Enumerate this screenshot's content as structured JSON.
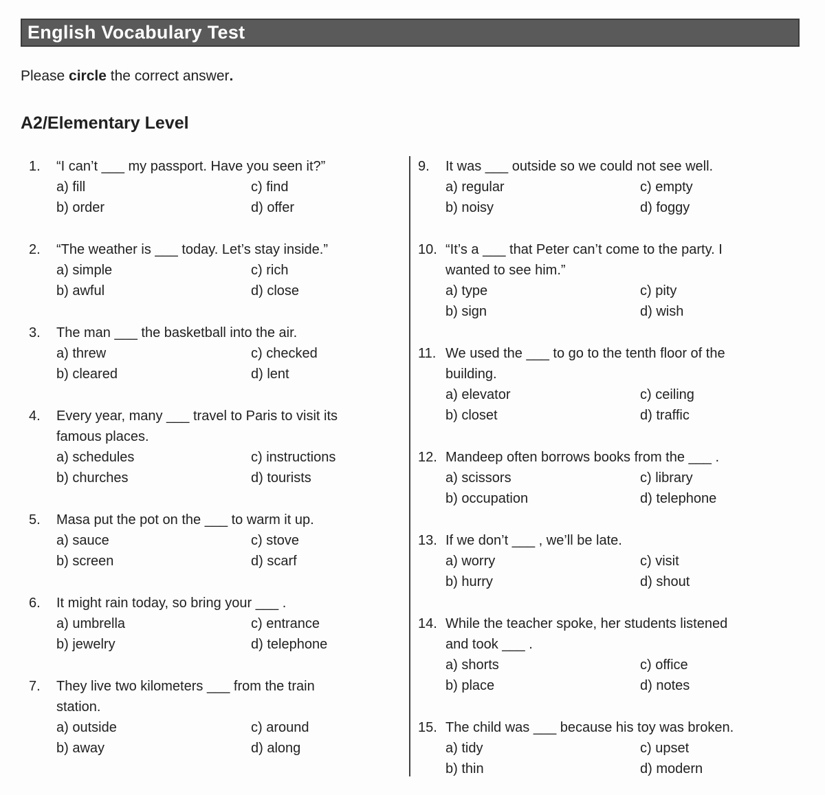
{
  "header": {
    "title": "English Vocabulary Test",
    "bar_color": "#5a5a5a",
    "bar_border_color": "#3b3b3b",
    "title_color": "#ffffff"
  },
  "instruction": {
    "segments": [
      {
        "text": "Please ",
        "bold": false
      },
      {
        "text": "circle",
        "bold": true
      },
      {
        "text": " the correct answer",
        "bold": false
      },
      {
        "text": ".",
        "bold": true
      }
    ]
  },
  "section": {
    "title": "A2/Elementary Level"
  },
  "questions_left": [
    {
      "num": "1.",
      "lines": [
        "“I can’t ___ my passport. Have you seen it?”"
      ],
      "options": [
        "a) fill",
        "c) find",
        "b) order",
        "d) offer"
      ]
    },
    {
      "num": "2.",
      "lines": [
        "“The weather is ___ today. Let’s stay inside.”"
      ],
      "options": [
        "a) simple",
        "c) rich",
        "b) awful",
        "d) close"
      ]
    },
    {
      "num": "3.",
      "lines": [
        "The man ___ the basketball into the air."
      ],
      "options": [
        "a) threw",
        "c) checked",
        "b) cleared",
        "d) lent"
      ]
    },
    {
      "num": "4.",
      "lines": [
        "Every year, many ___ travel to Paris to visit its",
        "famous places."
      ],
      "options": [
        "a) schedules",
        "c) instructions",
        "b) churches",
        "d) tourists"
      ]
    },
    {
      "num": "5.",
      "lines": [
        "Masa put the pot on the ___ to warm it up."
      ],
      "options": [
        "a) sauce",
        "c) stove",
        "b) screen",
        "d) scarf"
      ]
    },
    {
      "num": "6.",
      "lines": [
        "It might rain today, so bring your ___ ."
      ],
      "options": [
        "a) umbrella",
        "c) entrance",
        "b) jewelry",
        "d) telephone"
      ]
    },
    {
      "num": "7.",
      "lines": [
        "They live two kilometers ___ from the train",
        "station."
      ],
      "options": [
        "a) outside",
        "c) around",
        "b) away",
        "d) along"
      ]
    }
  ],
  "questions_right": [
    {
      "num": "9.",
      "lines": [
        "It was ___ outside so we could not see well."
      ],
      "options": [
        "a) regular",
        "c) empty",
        "b) noisy",
        "d) foggy"
      ]
    },
    {
      "num": "10.",
      "lines": [
        "“It’s a ___ that Peter can’t come to the party. I",
        "wanted to see him.”"
      ],
      "options": [
        "a) type",
        "c) pity",
        "b) sign",
        "d) wish"
      ]
    },
    {
      "num": "11.",
      "lines": [
        "We used the ___ to go to the tenth floor of the",
        "building."
      ],
      "options": [
        "a) elevator",
        "c) ceiling",
        "b) closet",
        "d) traffic"
      ]
    },
    {
      "num": "12.",
      "lines": [
        "Mandeep often borrows books from the ___ ."
      ],
      "options": [
        "a) scissors",
        "c) library",
        "b) occupation",
        "d) telephone"
      ]
    },
    {
      "num": "13.",
      "lines": [
        "If we don’t ___ , we’ll be late."
      ],
      "options": [
        "a) worry",
        "c) visit",
        "b) hurry",
        "d) shout"
      ]
    },
    {
      "num": "14.",
      "lines": [
        "While the teacher spoke, her students listened",
        "and took ___ ."
      ],
      "options": [
        "a) shorts",
        "c) office",
        "b) place",
        "d) notes"
      ]
    },
    {
      "num": "15.",
      "lines": [
        "The child was ___ because his toy was broken."
      ],
      "options": [
        "a) tidy",
        "c) upset",
        "b) thin",
        "d) modern"
      ]
    }
  ]
}
